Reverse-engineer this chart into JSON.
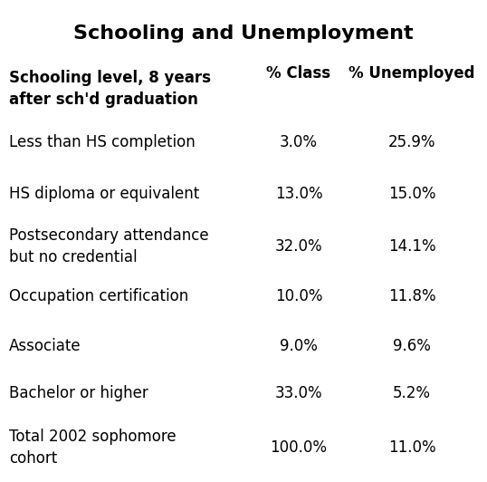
{
  "title": "Schooling and Unemployment",
  "title_fontsize": 16,
  "title_fontweight": "bold",
  "col_headers": [
    "Schooling level, 8 years\nafter sch'd graduation",
    "% Class",
    "% Unemployed"
  ],
  "col_header_fontsize": 12,
  "col_header_fontweight": "bold",
  "rows": [
    [
      "Less than HS completion",
      "3.0%",
      "25.9%"
    ],
    [
      "HS diploma or equivalent",
      "13.0%",
      "15.0%"
    ],
    [
      "Postsecondary attendance\nbut no credential",
      "32.0%",
      "14.1%"
    ],
    [
      "Occupation certification",
      "10.0%",
      "11.8%"
    ],
    [
      "Associate",
      "9.0%",
      "9.6%"
    ],
    [
      "Bachelor or higher",
      "33.0%",
      "5.2%"
    ],
    [
      "Total 2002 sophomore\ncohort",
      "100.0%",
      "11.0%"
    ]
  ],
  "data_fontsize": 12,
  "background_color": "#ffffff",
  "text_color": "#000000",
  "fig_width": 5.38,
  "fig_height": 5.32,
  "dpi": 100
}
